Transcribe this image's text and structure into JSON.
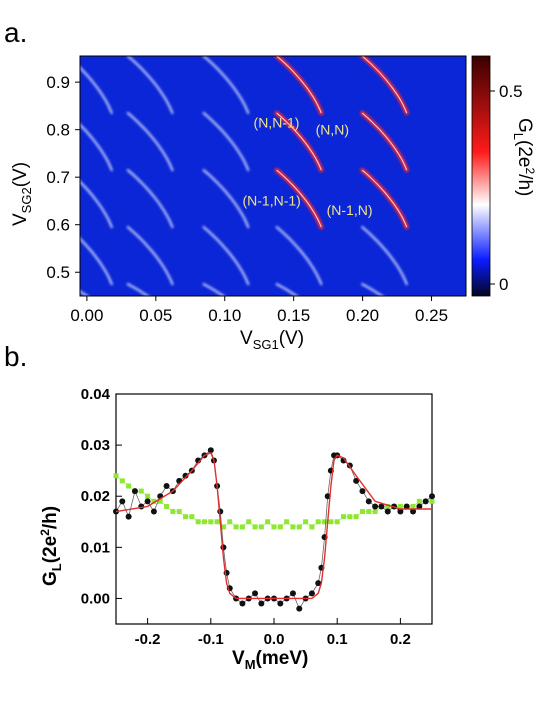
{
  "panel_a": {
    "letter": "a."
  },
  "panel_b": {
    "letter": "b."
  },
  "chart_data": [
    {
      "type": "heatmap",
      "xlabel_main": "V",
      "xlabel_sub": "SG1",
      "xlabel_unit": "(V)",
      "ylabel_main": "V",
      "ylabel_sub": "SG2",
      "ylabel_unit": "(V)",
      "xlim": [
        -0.005,
        0.275
      ],
      "ylim": [
        0.45,
        0.955
      ],
      "xticks": [
        "0.00",
        "0.05",
        "0.10",
        "0.15",
        "0.20",
        "0.25"
      ],
      "yticks": [
        "0.5",
        "0.6",
        "0.7",
        "0.8",
        "0.9"
      ],
      "colorbar": {
        "label_main": "G",
        "label_sub": "L",
        "label_unit": "(2e",
        "label_sup": "2",
        "label_tail": "/h)",
        "range": [
          -0.05,
          0.6
        ],
        "ticks": [
          "0",
          "0.5"
        ],
        "colors": [
          "#050520",
          "#0a1cff",
          "#ffffff",
          "#ff1a1a",
          "#3a0000"
        ]
      },
      "annotations": [
        {
          "text": "(N,N-1)",
          "x": 0.147,
          "y": 0.805
        },
        {
          "text": "(N,N)",
          "x": 0.192,
          "y": 0.79
        },
        {
          "text": "(N-1,N-1)",
          "x": 0.139,
          "y": 0.64
        },
        {
          "text": "(N-1,N)",
          "x": 0.2,
          "y": 0.62
        }
      ],
      "resonance_lines": [
        {
          "x_center": 0.006,
          "y_from": 0.955,
          "y_to": 0.45,
          "intensity": 0.2
        },
        {
          "x_center": 0.05,
          "y_from": 0.955,
          "y_to": 0.45,
          "intensity": 0.28
        },
        {
          "x_center": 0.105,
          "y_from": 0.955,
          "y_to": 0.45,
          "intensity": 0.32
        },
        {
          "x_center": 0.158,
          "y_from": 0.955,
          "y_to": 0.45,
          "intensity": 0.45
        },
        {
          "x_center": 0.22,
          "y_from": 0.955,
          "y_to": 0.45,
          "intensity": 0.55
        }
      ]
    },
    {
      "type": "scatter",
      "xlabel_main": "V",
      "xlabel_sub": "M",
      "xlabel_unit": "(meV)",
      "ylabel_main": "G",
      "ylabel_sub": "L",
      "ylabel_unit": "(2e",
      "ylabel_sup": "2",
      "ylabel_tail": "/h)",
      "xlim": [
        -0.25,
        0.25
      ],
      "ylim": [
        -0.005,
        0.04
      ],
      "xticks": [
        "-0.2",
        "-0.1",
        "0.0",
        "0.1",
        "0.2"
      ],
      "xtick_values": [
        -0.2,
        -0.1,
        0.0,
        0.1,
        0.2
      ],
      "yticks": [
        "0.00",
        "0.01",
        "0.02",
        "0.03",
        "0.04"
      ],
      "ytick_values": [
        0.0,
        0.01,
        0.02,
        0.03,
        0.04
      ],
      "series": [
        {
          "color": "#111111",
          "marker": "circle",
          "points": [
            [
              -0.25,
              0.017
            ],
            [
              -0.24,
              0.019
            ],
            [
              -0.23,
              0.016
            ],
            [
              -0.22,
              0.021
            ],
            [
              -0.21,
              0.018
            ],
            [
              -0.2,
              0.019
            ],
            [
              -0.19,
              0.017
            ],
            [
              -0.18,
              0.02
            ],
            [
              -0.17,
              0.022
            ],
            [
              -0.16,
              0.021
            ],
            [
              -0.15,
              0.023
            ],
            [
              -0.14,
              0.024
            ],
            [
              -0.13,
              0.025
            ],
            [
              -0.12,
              0.027
            ],
            [
              -0.11,
              0.028
            ],
            [
              -0.1,
              0.029
            ],
            [
              -0.095,
              0.027
            ],
            [
              -0.09,
              0.022
            ],
            [
              -0.085,
              0.017
            ],
            [
              -0.08,
              0.01
            ],
            [
              -0.075,
              0.005
            ],
            [
              -0.07,
              0.002
            ],
            [
              -0.06,
              0.0
            ],
            [
              -0.05,
              -0.001
            ],
            [
              -0.04,
              0.0
            ],
            [
              -0.03,
              0.001
            ],
            [
              -0.02,
              -0.001
            ],
            [
              -0.01,
              0.0
            ],
            [
              0.0,
              0.0
            ],
            [
              0.01,
              -0.001
            ],
            [
              0.02,
              0.0
            ],
            [
              0.03,
              0.001
            ],
            [
              0.04,
              -0.002
            ],
            [
              0.05,
              0.0
            ],
            [
              0.06,
              0.001
            ],
            [
              0.07,
              0.003
            ],
            [
              0.075,
              0.006
            ],
            [
              0.08,
              0.012
            ],
            [
              0.085,
              0.02
            ],
            [
              0.09,
              0.025
            ],
            [
              0.095,
              0.028
            ],
            [
              0.1,
              0.028
            ],
            [
              0.11,
              0.027
            ],
            [
              0.12,
              0.026
            ],
            [
              0.13,
              0.023
            ],
            [
              0.14,
              0.021
            ],
            [
              0.15,
              0.019
            ],
            [
              0.16,
              0.018
            ],
            [
              0.17,
              0.018
            ],
            [
              0.18,
              0.017
            ],
            [
              0.19,
              0.018
            ],
            [
              0.2,
              0.017
            ],
            [
              0.21,
              0.018
            ],
            [
              0.22,
              0.017
            ],
            [
              0.23,
              0.018
            ],
            [
              0.24,
              0.019
            ],
            [
              0.25,
              0.02
            ]
          ]
        },
        {
          "color": "#8ee832",
          "marker": "square",
          "points": [
            [
              -0.25,
              0.024
            ],
            [
              -0.24,
              0.023
            ],
            [
              -0.23,
              0.022
            ],
            [
              -0.22,
              0.021
            ],
            [
              -0.21,
              0.021
            ],
            [
              -0.2,
              0.02
            ],
            [
              -0.19,
              0.019
            ],
            [
              -0.18,
              0.019
            ],
            [
              -0.17,
              0.018
            ],
            [
              -0.16,
              0.017
            ],
            [
              -0.15,
              0.017
            ],
            [
              -0.14,
              0.016
            ],
            [
              -0.13,
              0.016
            ],
            [
              -0.12,
              0.015
            ],
            [
              -0.11,
              0.015
            ],
            [
              -0.1,
              0.015
            ],
            [
              -0.09,
              0.015
            ],
            [
              -0.08,
              0.014
            ],
            [
              -0.07,
              0.015
            ],
            [
              -0.06,
              0.014
            ],
            [
              -0.05,
              0.014
            ],
            [
              -0.04,
              0.015
            ],
            [
              -0.03,
              0.014
            ],
            [
              -0.02,
              0.014
            ],
            [
              -0.01,
              0.015
            ],
            [
              0.0,
              0.014
            ],
            [
              0.01,
              0.014
            ],
            [
              0.02,
              0.015
            ],
            [
              0.03,
              0.014
            ],
            [
              0.04,
              0.014
            ],
            [
              0.05,
              0.015
            ],
            [
              0.06,
              0.014
            ],
            [
              0.07,
              0.015
            ],
            [
              0.08,
              0.015
            ],
            [
              0.09,
              0.015
            ],
            [
              0.1,
              0.015
            ],
            [
              0.11,
              0.016
            ],
            [
              0.12,
              0.016
            ],
            [
              0.13,
              0.016
            ],
            [
              0.14,
              0.017
            ],
            [
              0.15,
              0.017
            ],
            [
              0.16,
              0.017
            ],
            [
              0.17,
              0.018
            ],
            [
              0.18,
              0.018
            ],
            [
              0.19,
              0.018
            ],
            [
              0.2,
              0.018
            ],
            [
              0.21,
              0.018
            ],
            [
              0.22,
              0.018
            ],
            [
              0.23,
              0.019
            ],
            [
              0.24,
              0.019
            ],
            [
              0.25,
              0.019
            ]
          ]
        }
      ],
      "fit": {
        "color": "#e03030",
        "points": [
          [
            -0.25,
            0.017
          ],
          [
            -0.2,
            0.018
          ],
          [
            -0.16,
            0.021
          ],
          [
            -0.13,
            0.025
          ],
          [
            -0.11,
            0.028
          ],
          [
            -0.1,
            0.0285
          ],
          [
            -0.095,
            0.027
          ],
          [
            -0.09,
            0.022
          ],
          [
            -0.085,
            0.015
          ],
          [
            -0.08,
            0.008
          ],
          [
            -0.075,
            0.003
          ],
          [
            -0.07,
            0.001
          ],
          [
            -0.06,
            0.0
          ],
          [
            0.06,
            0.0
          ],
          [
            0.07,
            0.001
          ],
          [
            0.075,
            0.003
          ],
          [
            0.08,
            0.008
          ],
          [
            0.085,
            0.015
          ],
          [
            0.09,
            0.022
          ],
          [
            0.095,
            0.027
          ],
          [
            0.1,
            0.028
          ],
          [
            0.11,
            0.0275
          ],
          [
            0.13,
            0.024
          ],
          [
            0.16,
            0.019
          ],
          [
            0.2,
            0.0175
          ],
          [
            0.25,
            0.0175
          ]
        ]
      }
    }
  ]
}
